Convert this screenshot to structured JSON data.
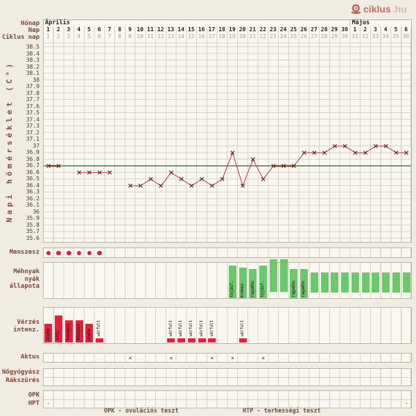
{
  "logo": {
    "brand": "ciklus",
    "suffix": ".hu"
  },
  "header": {
    "month_label": "Hónap",
    "day_label": "Nap",
    "cycle_day_label": "Ciklus nap",
    "months": [
      {
        "label": "Április",
        "span_days": 30
      },
      {
        "label": "Május",
        "span_days": 6
      }
    ],
    "day_numbers": [
      1,
      2,
      3,
      4,
      5,
      6,
      7,
      8,
      9,
      10,
      11,
      12,
      13,
      14,
      15,
      16,
      17,
      18,
      19,
      20,
      21,
      22,
      23,
      24,
      25,
      26,
      27,
      28,
      29,
      30,
      1,
      2,
      3,
      4,
      5,
      6
    ],
    "cycle_days": [
      1,
      2,
      3,
      4,
      5,
      6,
      7,
      8,
      9,
      10,
      11,
      12,
      13,
      14,
      15,
      16,
      17,
      18,
      19,
      20,
      21,
      22,
      23,
      24,
      25,
      26,
      27,
      28,
      29,
      30,
      31,
      32,
      33,
      34,
      35,
      36
    ]
  },
  "chart_data": {
    "type": "line",
    "title": "",
    "xlabel": "Ciklus nap",
    "ylabel": "Napi hőmérséklet (C°)",
    "ylim": [
      35.6,
      38.5
    ],
    "ytick_step": 0.1,
    "yticks": [
      "38.5",
      "38.4",
      "38.3",
      "38.2",
      "38.1",
      "38",
      "37.9",
      "37.8",
      "37.7",
      "37.6",
      "37.5",
      "37.4",
      "37.3",
      "37.2",
      "37.1",
      "37",
      "36.9",
      "36.8",
      "36.7",
      "36.6",
      "36.5",
      "36.4",
      "36.3",
      "36.2",
      "36.1",
      "36",
      "35.9",
      "35.8",
      "35.7",
      "35.6"
    ],
    "grid": true,
    "coverline": {
      "value": 36.7,
      "color": "#1e8a1e"
    },
    "temperatures": [
      36.7,
      36.7,
      null,
      36.6,
      36.6,
      36.6,
      36.6,
      null,
      36.4,
      36.4,
      36.5,
      36.4,
      36.6,
      36.5,
      36.4,
      36.5,
      36.4,
      36.5,
      36.9,
      36.4,
      36.8,
      36.5,
      36.7,
      36.7,
      36.7,
      36.9,
      36.9,
      36.9,
      37,
      37,
      36.9,
      36.9,
      37,
      37,
      36.9,
      36.9
    ],
    "line_color": "#c23352",
    "marker": "x",
    "marker_color": "#4d2334",
    "coverline_overlap_segments": [
      [
        1,
        2
      ],
      [
        23,
        25
      ]
    ],
    "overlap_color": "#8b4513"
  },
  "rows": {
    "menses": {
      "label": "Menszesz",
      "days": [
        1,
        2,
        3,
        4,
        5,
        6
      ],
      "dot_color": "#d6203e"
    },
    "mucus": {
      "label_lines": [
        "Méhnyak",
        "nyák",
        "állapota"
      ],
      "bar_color": "#6dc86d",
      "entries": [
        {
          "day": 19,
          "label": "tojásf.",
          "level": "high"
        },
        {
          "day": 20,
          "label": "krémes",
          "level": "medium"
        },
        {
          "day": 21,
          "label": "ragadós",
          "level": "low"
        },
        {
          "day": 22,
          "label": "tojásf.",
          "level": "high"
        },
        {
          "day": 23,
          "label": "",
          "level": "peak"
        },
        {
          "day": 24,
          "label": "",
          "level": "peak"
        },
        {
          "day": 25,
          "label": "ragadós",
          "level": "low"
        },
        {
          "day": 26,
          "label": "ragadós",
          "level": "low"
        },
        {
          "day": 27,
          "label": "",
          "level": "plain"
        },
        {
          "day": 28,
          "label": "",
          "level": "plain"
        },
        {
          "day": 29,
          "label": "",
          "level": "plain"
        },
        {
          "day": 30,
          "label": "",
          "level": "plain"
        },
        {
          "day": 31,
          "label": "",
          "level": "plain"
        },
        {
          "day": 32,
          "label": "",
          "level": "plain"
        },
        {
          "day": 33,
          "label": "",
          "level": "plain"
        },
        {
          "day": 34,
          "label": "",
          "level": "plain"
        },
        {
          "day": 35,
          "label": "",
          "level": "plain"
        },
        {
          "day": 36,
          "label": "",
          "level": "plain"
        }
      ]
    },
    "bleeding": {
      "label_lines": [
        "Vérzés",
        "intenz."
      ],
      "bar_color": "#e81f39",
      "entries": [
        {
          "day": 1,
          "label": "enyhe",
          "level": "mild"
        },
        {
          "day": 2,
          "label": "erős",
          "level": "strong"
        },
        {
          "day": 3,
          "label": "közepes",
          "level": "medium"
        },
        {
          "day": 4,
          "label": "közepes",
          "level": "medium"
        },
        {
          "day": 5,
          "label": "enyhe",
          "level": "mild"
        },
        {
          "day": 6,
          "label": "vérfolt",
          "level": "spot"
        },
        {
          "day": 13,
          "label": "vérfolt",
          "level": "spot"
        },
        {
          "day": 14,
          "label": "vérfolt",
          "level": "spot"
        },
        {
          "day": 15,
          "label": "vérfolt",
          "level": "spot"
        },
        {
          "day": 16,
          "label": "vérfolt",
          "level": "spot"
        },
        {
          "day": 17,
          "label": "vérfolt",
          "level": "spot"
        },
        {
          "day": 20,
          "label": "vérfolt",
          "level": "spot"
        }
      ]
    },
    "intercourse": {
      "label": "Aktus",
      "mark": "×",
      "days": [
        9,
        13,
        17,
        19,
        22
      ]
    },
    "gynecologist": {
      "label_lines": [
        "Nőgyógyász",
        "Rákszürés"
      ]
    },
    "opk": {
      "label": "OPK"
    },
    "hpt": {
      "label": "HPT",
      "entries": [
        {
          "day": 1,
          "mark": "-"
        },
        {
          "day": 36,
          "mark": "-"
        }
      ]
    }
  },
  "legend": {
    "opk": "OPK - ovulációs teszt",
    "hpt": "HTP - terhességi teszt"
  }
}
